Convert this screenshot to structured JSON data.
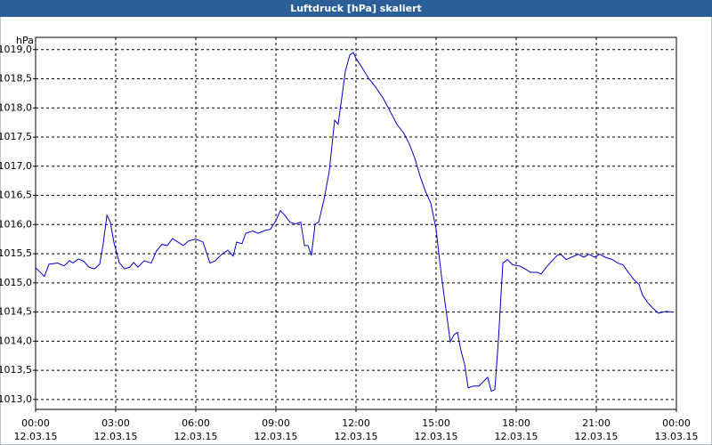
{
  "chart_data": {
    "type": "line",
    "title": "Luftdruck [hPa] skaliert",
    "y_unit": "hPa",
    "xlim": [
      0,
      24
    ],
    "ylim": [
      1012.83,
      1019.21
    ],
    "grid": true,
    "xticks": [
      {
        "value": 0,
        "label": "00:00"
      },
      {
        "value": 3,
        "label": "03:00"
      },
      {
        "value": 6,
        "label": "06:00"
      },
      {
        "value": 9,
        "label": "09:00"
      },
      {
        "value": 12,
        "label": "12:00"
      },
      {
        "value": 15,
        "label": "15:00"
      },
      {
        "value": 18,
        "label": "18:00"
      },
      {
        "value": 21,
        "label": "21:00"
      },
      {
        "value": 24,
        "label": "00:00"
      }
    ],
    "xtick_dates": [
      "12.03.15",
      "12.03.15",
      "12.03.15",
      "12.03.15",
      "12.03.15",
      "12.03.15",
      "12.03.15",
      "12.03.15",
      "13.03.15"
    ],
    "yticks": [
      {
        "value": 1013,
        "label": "1013,0"
      },
      {
        "value": 1013.5,
        "label": "1013,5"
      },
      {
        "value": 1014,
        "label": "1014,0"
      },
      {
        "value": 1014.5,
        "label": "1014,5"
      },
      {
        "value": 1015,
        "label": "1015,0"
      },
      {
        "value": 1015.5,
        "label": "1015,5"
      },
      {
        "value": 1016,
        "label": "1016,0"
      },
      {
        "value": 1016.5,
        "label": "1016,5"
      },
      {
        "value": 1017,
        "label": "1017,0"
      },
      {
        "value": 1017.5,
        "label": "1017,5"
      },
      {
        "value": 1018,
        "label": "1018,0"
      },
      {
        "value": 1018.5,
        "label": "1018,5"
      },
      {
        "value": 1019,
        "label": "1019,0"
      }
    ],
    "series": [
      {
        "color": "#0000cc",
        "x": [
          0,
          0.33,
          0.5,
          0.83,
          1.07,
          1.27,
          1.4,
          1.6,
          1.8,
          2,
          2.2,
          2.4,
          2.53,
          2.67,
          2.8,
          2.93,
          3.13,
          3.33,
          3.53,
          3.67,
          3.83,
          4.07,
          4.33,
          4.53,
          4.73,
          4.93,
          5.13,
          5.33,
          5.53,
          5.73,
          6,
          6.27,
          6.53,
          6.73,
          7,
          7.2,
          7.4,
          7.53,
          7.73,
          7.87,
          8.13,
          8.33,
          8.6,
          8.8,
          9,
          9.17,
          9.33,
          9.53,
          9.73,
          9.93,
          10.07,
          10.2,
          10.33,
          10.47,
          10.6,
          10.8,
          11,
          11.2,
          11.33,
          11.47,
          11.6,
          11.77,
          11.9,
          12,
          12.2,
          12.47,
          12.73,
          13,
          13.27,
          13.53,
          13.8,
          14,
          14.2,
          14.4,
          14.6,
          14.8,
          15,
          15.2,
          15.4,
          15.53,
          15.67,
          15.8,
          15.93,
          16.07,
          16.2,
          16.4,
          16.6,
          16.8,
          16.93,
          17.07,
          17.2,
          17.33,
          17.5,
          17.67,
          17.87,
          18.13,
          18.33,
          18.53,
          18.8,
          18.93,
          19.13,
          19.33,
          19.53,
          19.67,
          19.87,
          20.07,
          20.33,
          20.53,
          20.73,
          20.93,
          21.13,
          21.33,
          21.6,
          21.8,
          22,
          22.2,
          22.4,
          22.6,
          22.73,
          22.93,
          23.13,
          23.33,
          23.6,
          23.87
        ],
        "values": [
          1015.26,
          1015.11,
          1015.32,
          1015.34,
          1015.29,
          1015.38,
          1015.34,
          1015.41,
          1015.37,
          1015.27,
          1015.24,
          1015.32,
          1015.66,
          1016.16,
          1016.04,
          1015.7,
          1015.35,
          1015.24,
          1015.27,
          1015.35,
          1015.27,
          1015.38,
          1015.34,
          1015.55,
          1015.66,
          1015.64,
          1015.76,
          1015.7,
          1015.64,
          1015.72,
          1015.75,
          1015.7,
          1015.34,
          1015.38,
          1015.5,
          1015.56,
          1015.46,
          1015.7,
          1015.67,
          1015.85,
          1015.89,
          1015.85,
          1015.9,
          1015.92,
          1016.07,
          1016.24,
          1016.16,
          1016.04,
          1016.01,
          1016.04,
          1015.64,
          1015.64,
          1015.47,
          1016.01,
          1016.04,
          1016.42,
          1016.92,
          1017.79,
          1017.72,
          1018.18,
          1018.63,
          1018.91,
          1018.95,
          1018.85,
          1018.71,
          1018.51,
          1018.36,
          1018.18,
          1017.95,
          1017.72,
          1017.56,
          1017.38,
          1017.14,
          1016.83,
          1016.57,
          1016.37,
          1015.92,
          1015.12,
          1014.44,
          1013.99,
          1014.11,
          1014.15,
          1013.84,
          1013.6,
          1013.2,
          1013.23,
          1013.23,
          1013.32,
          1013.38,
          1013.14,
          1013.17,
          1013.99,
          1015.34,
          1015.4,
          1015.31,
          1015.29,
          1015.24,
          1015.18,
          1015.18,
          1015.15,
          1015.27,
          1015.37,
          1015.47,
          1015.49,
          1015.4,
          1015.44,
          1015.49,
          1015.44,
          1015.49,
          1015.44,
          1015.49,
          1015.44,
          1015.4,
          1015.34,
          1015.31,
          1015.18,
          1015.06,
          1014.97,
          1014.79,
          1014.66,
          1014.56,
          1014.48,
          1014.51,
          1014.5
        ]
      }
    ]
  }
}
